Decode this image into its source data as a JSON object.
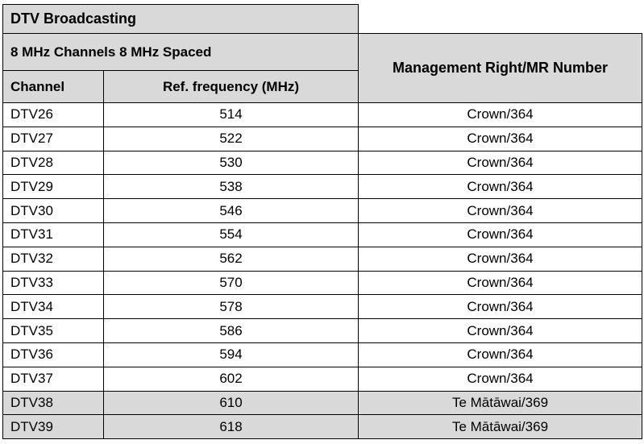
{
  "title": "DTV Broadcasting",
  "subtitle": "8 MHz Channels 8 MHz Spaced",
  "columns": {
    "channel": "Channel",
    "frequency": "Ref. frequency (MHz)",
    "management_right": "Management Right/MR Number"
  },
  "rows": [
    {
      "channel": "DTV26",
      "frequency": "514",
      "mr": "Crown/364",
      "shaded": false
    },
    {
      "channel": "DTV27",
      "frequency": "522",
      "mr": "Crown/364",
      "shaded": false
    },
    {
      "channel": "DTV28",
      "frequency": "530",
      "mr": "Crown/364",
      "shaded": false
    },
    {
      "channel": "DTV29",
      "frequency": "538",
      "mr": "Crown/364",
      "shaded": false
    },
    {
      "channel": "DTV30",
      "frequency": "546",
      "mr": "Crown/364",
      "shaded": false
    },
    {
      "channel": "DTV31",
      "frequency": "554",
      "mr": "Crown/364",
      "shaded": false
    },
    {
      "channel": "DTV32",
      "frequency": "562",
      "mr": "Crown/364",
      "shaded": false
    },
    {
      "channel": "DTV33",
      "frequency": "570",
      "mr": "Crown/364",
      "shaded": false
    },
    {
      "channel": "DTV34",
      "frequency": "578",
      "mr": "Crown/364",
      "shaded": false
    },
    {
      "channel": "DTV35",
      "frequency": "586",
      "mr": "Crown/364",
      "shaded": false
    },
    {
      "channel": "DTV36",
      "frequency": "594",
      "mr": "Crown/364",
      "shaded": false
    },
    {
      "channel": "DTV37",
      "frequency": "602",
      "mr": "Crown/364",
      "shaded": false
    },
    {
      "channel": "DTV38",
      "frequency": "610",
      "mr": "Te Mātāwai/369",
      "shaded": true
    },
    {
      "channel": "DTV39",
      "frequency": "618",
      "mr": "Te Mātāwai/369",
      "shaded": true
    }
  ],
  "colors": {
    "header_fill": "#d9d9d9",
    "border": "#000000"
  }
}
